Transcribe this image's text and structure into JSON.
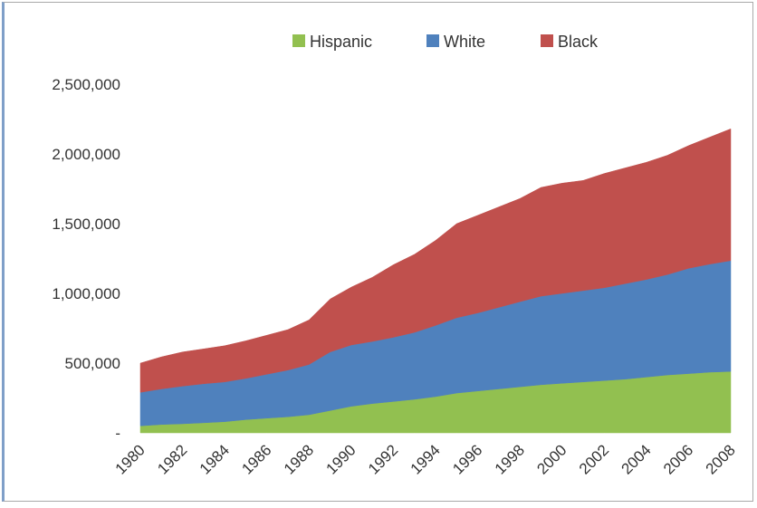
{
  "chart_data": {
    "type": "area",
    "stacked": true,
    "x": [
      1980,
      1981,
      1982,
      1983,
      1984,
      1985,
      1986,
      1987,
      1988,
      1989,
      1990,
      1991,
      1992,
      1993,
      1994,
      1995,
      1996,
      1997,
      1998,
      1999,
      2000,
      2001,
      2002,
      2003,
      2004,
      2005,
      2006,
      2007,
      2008
    ],
    "x_tick_labels": [
      "1980",
      "1982",
      "1984",
      "1986",
      "1988",
      "1990",
      "1992",
      "1994",
      "1996",
      "1998",
      "2000",
      "2002",
      "2004",
      "2006",
      "2008"
    ],
    "y_tick_labels": [
      "-",
      "500,000",
      "1,000,000",
      "1,500,000",
      "2,000,000",
      "2,500,000"
    ],
    "ylim": [
      0,
      2500000
    ],
    "legend_position": "top",
    "grid": false,
    "series": [
      {
        "name": "Hispanic",
        "color": "#92c050",
        "values": [
          50000,
          60000,
          65000,
          72000,
          80000,
          95000,
          105000,
          115000,
          130000,
          160000,
          190000,
          210000,
          225000,
          240000,
          260000,
          285000,
          300000,
          315000,
          330000,
          345000,
          355000,
          365000,
          375000,
          385000,
          400000,
          415000,
          425000,
          435000,
          440000
        ]
      },
      {
        "name": "White",
        "color": "#4f81bd",
        "values": [
          240000,
          255000,
          270000,
          280000,
          285000,
          295000,
          315000,
          335000,
          360000,
          420000,
          440000,
          445000,
          460000,
          480000,
          510000,
          540000,
          560000,
          585000,
          610000,
          635000,
          645000,
          655000,
          665000,
          685000,
          700000,
          720000,
          755000,
          775000,
          795000
        ]
      },
      {
        "name": "Black",
        "color": "#c0504d",
        "values": [
          210000,
          230000,
          245000,
          250000,
          260000,
          270000,
          280000,
          290000,
          320000,
          380000,
          415000,
          460000,
          520000,
          560000,
          610000,
          675000,
          700000,
          720000,
          740000,
          780000,
          790000,
          790000,
          820000,
          830000,
          840000,
          855000,
          880000,
          910000,
          945000
        ]
      }
    ]
  }
}
